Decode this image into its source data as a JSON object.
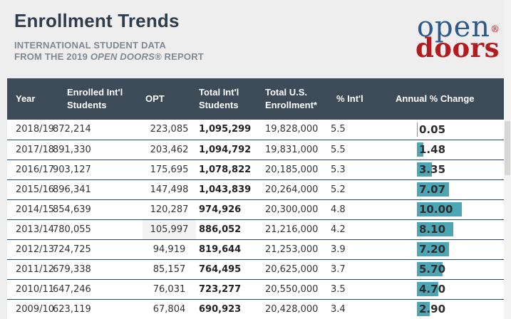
{
  "colors": {
    "page_bg": "#eeeeef",
    "header_bg": "#3d4a57",
    "bar_teal": "#4da6b5",
    "row_divider": "#32465a",
    "title_text": "#2e3d4e",
    "subtitle_text": "#7f8992",
    "logo_open_blue": "#2d5a8d",
    "logo_doors_red": "#b31b1e"
  },
  "masthead": {
    "title": "Enrollment Trends",
    "subtitle_line1": "INTERNATIONAL STUDENT DATA",
    "subtitle_line2_prefix": "FROM THE 2019 ",
    "subtitle_line2_italic": "OPEN DOORS®",
    "subtitle_line2_suffix": " REPORT",
    "logo_open": "open",
    "logo_reg": "®",
    "logo_doors": "doors"
  },
  "table": {
    "columns": [
      {
        "key": "year",
        "label": "Year"
      },
      {
        "key": "enrolled",
        "label": "Enrolled Int'l\nStudents"
      },
      {
        "key": "opt",
        "label": "OPT"
      },
      {
        "key": "total_intl",
        "label": "Total Int'l\nStudents"
      },
      {
        "key": "total_us",
        "label": "Total U.S.\nEnrollment*"
      },
      {
        "key": "pct_intl",
        "label": "% Int'l"
      },
      {
        "key": "annual",
        "label": "Annual % Change"
      }
    ],
    "rows": [
      {
        "year": "2018/19",
        "enrolled": "872,214",
        "opt": "223,085",
        "total_intl": "1,095,299",
        "total_us": "19,828,000",
        "pct_intl": "5.5",
        "annual_label": "0.05",
        "annual_value": 0.05,
        "opt_highlight": false
      },
      {
        "year": "2017/18",
        "enrolled": "891,330",
        "opt": "203,462",
        "total_intl": "1,094,792",
        "total_us": "19,831,000",
        "pct_intl": "5.5",
        "annual_label": "1.48",
        "annual_value": 1.48,
        "opt_highlight": false
      },
      {
        "year": "2016/17",
        "enrolled": "903,127",
        "opt": "175,695",
        "total_intl": "1,078,822",
        "total_us": "20,185,000",
        "pct_intl": "5.3",
        "annual_label": "3.35",
        "annual_value": 3.35,
        "opt_highlight": false
      },
      {
        "year": "2015/16",
        "enrolled": "896,341",
        "opt": "147,498",
        "total_intl": "1,043,839",
        "total_us": "20,264,000",
        "pct_intl": "5.2",
        "annual_label": "7.07",
        "annual_value": 7.07,
        "opt_highlight": false
      },
      {
        "year": "2014/15",
        "enrolled": "854,639",
        "opt": "120,287",
        "total_intl": "974,926",
        "total_us": "20,300,000",
        "pct_intl": "4.8",
        "annual_label": "10.00",
        "annual_value": 10.0,
        "opt_highlight": false
      },
      {
        "year": "2013/14",
        "enrolled": "780,055",
        "opt": "105,997",
        "total_intl": "886,052",
        "total_us": "21,216,000",
        "pct_intl": "4.2",
        "annual_label": "8.10",
        "annual_value": 8.1,
        "opt_highlight": true
      },
      {
        "year": "2012/13",
        "enrolled": "724,725",
        "opt": "94,919",
        "total_intl": "819,644",
        "total_us": "21,253,000",
        "pct_intl": "3.9",
        "annual_label": "7.20",
        "annual_value": 7.2,
        "opt_highlight": false
      },
      {
        "year": "2011/12",
        "enrolled": "679,338",
        "opt": "85,157",
        "total_intl": "764,495",
        "total_us": "20,625,000",
        "pct_intl": "3.7",
        "annual_label": "5.70",
        "annual_value": 5.7,
        "opt_highlight": false
      },
      {
        "year": "2010/11",
        "enrolled": "647,246",
        "opt": "76,031",
        "total_intl": "723,277",
        "total_us": "20,550,000",
        "pct_intl": "3.5",
        "annual_label": "4.70",
        "annual_value": 4.7,
        "opt_highlight": false
      },
      {
        "year": "2009/10",
        "enrolled": "623,119",
        "opt": "67,804",
        "total_intl": "690,923",
        "total_us": "20,428,000",
        "pct_intl": "3.4",
        "annual_label": "2.90",
        "annual_value": 2.9,
        "opt_highlight": false
      }
    ]
  },
  "chart_data": {
    "type": "table",
    "title": "Enrollment Trends",
    "columns": [
      "Year",
      "Enrolled Int'l Students",
      "OPT",
      "Total Int'l Students",
      "Total U.S. Enrollment*",
      "% Int'l",
      "Annual % Change"
    ],
    "rows": [
      [
        "2018/19",
        872214,
        223085,
        1095299,
        19828000,
        5.5,
        0.05
      ],
      [
        "2017/18",
        891330,
        203462,
        1094792,
        19831000,
        5.5,
        1.48
      ],
      [
        "2016/17",
        903127,
        175695,
        1078822,
        20185000,
        5.3,
        3.35
      ],
      [
        "2015/16",
        896341,
        147498,
        1043839,
        20264000,
        5.2,
        7.07
      ],
      [
        "2014/15",
        854639,
        120287,
        974926,
        20300000,
        4.8,
        10.0
      ],
      [
        "2013/14",
        780055,
        105997,
        886052,
        21216000,
        4.2,
        8.1
      ],
      [
        "2012/13",
        724725,
        94919,
        819644,
        21253000,
        3.9,
        7.2
      ],
      [
        "2011/12",
        679338,
        85157,
        764495,
        20625000,
        3.7,
        5.7
      ],
      [
        "2010/11",
        647246,
        76031,
        723277,
        20550000,
        3.5,
        4.7
      ],
      [
        "2009/10",
        623119,
        67804,
        690923,
        20428000,
        3.4,
        2.9
      ]
    ],
    "embedded_bar": {
      "column": "Annual % Change",
      "color": "#4da6b5",
      "value_range": [
        0,
        10
      ]
    }
  }
}
